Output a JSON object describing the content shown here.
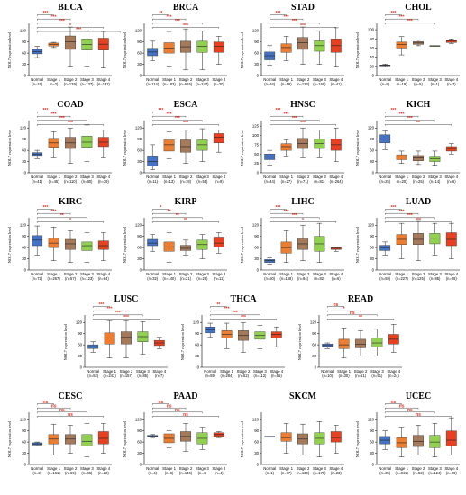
{
  "colors": {
    "Normal": "#4472c4",
    "Stage 1": "#ed7d31",
    "Stage 2": "#a5795a",
    "Stage 3": "#92d050",
    "Stage 4": "#e84020",
    "significance": "#e03020"
  },
  "chart_data": [
    {
      "type": "box",
      "title": "BLCA",
      "ylabel": "NOL7 expression level",
      "yticks": [
        0,
        30,
        60,
        90,
        120
      ],
      "ylim": [
        0,
        135
      ],
      "categories": [
        "Normal",
        "Stage 1",
        "Stage 2",
        "Stage 3",
        "Stage 4"
      ],
      "n_labels": [
        "(n=19)",
        "(n=2)",
        "(n=129)",
        "(n=137)",
        "(n=132)"
      ],
      "boxes": [
        [
          48,
          58,
          64,
          70,
          78
        ],
        [
          75,
          79,
          83,
          87,
          89
        ],
        [
          25,
          70,
          90,
          106,
          130
        ],
        [
          25,
          68,
          83,
          98,
          120
        ],
        [
          20,
          68,
          84,
          100,
          118
        ]
      ],
      "significance": [
        "***",
        "***",
        "***",
        "*",
        "***"
      ]
    },
    {
      "type": "box",
      "title": "BRCA",
      "ylabel": "NOL7 expression level",
      "yticks": [
        0,
        30,
        60,
        90,
        120
      ],
      "ylim": [
        0,
        135
      ],
      "categories": [
        "Normal",
        "Stage 1",
        "Stage 2",
        "Stage 3",
        "Stage 4"
      ],
      "n_labels": [
        "(n=114)",
        "(n=183)",
        "(n=615)",
        "(n=247)",
        "(n=20)"
      ],
      "boxes": [
        [
          40,
          53,
          63,
          73,
          92
        ],
        [
          25,
          60,
          73,
          88,
          118
        ],
        [
          15,
          62,
          77,
          92,
          125
        ],
        [
          15,
          62,
          78,
          92,
          120
        ],
        [
          30,
          62,
          78,
          90,
          105
        ]
      ],
      "significance": [
        "**",
        "***",
        "***",
        "***"
      ]
    },
    {
      "type": "box",
      "title": "STAD",
      "ylabel": "NOL7 expression level",
      "yticks": [
        0,
        30,
        60,
        90,
        120
      ],
      "ylim": [
        0,
        135
      ],
      "categories": [
        "Normal",
        "Stage 1",
        "Stage 2",
        "Stage 3",
        "Stage 4"
      ],
      "n_labels": [
        "(n=34)",
        "(n=18)",
        "(n=123)",
        "(n=169)",
        "(n=41)"
      ],
      "boxes": [
        [
          28,
          42,
          53,
          63,
          80
        ],
        [
          40,
          62,
          75,
          85,
          105
        ],
        [
          30,
          70,
          88,
          102,
          130
        ],
        [
          30,
          65,
          80,
          93,
          120
        ],
        [
          25,
          62,
          80,
          98,
          128
        ]
      ],
      "significance": [
        "***",
        "***",
        "***",
        "***"
      ]
    },
    {
      "type": "box",
      "title": "CHOL",
      "ylabel": "NOL7 expression level",
      "yticks": [
        0,
        20,
        40,
        60,
        80,
        100
      ],
      "ylim": [
        0,
        110
      ],
      "categories": [
        "Normal",
        "Stage 1",
        "Stage 2",
        "Stage 3",
        "Stage 4"
      ],
      "n_labels": [
        "(n=9)",
        "(n=19)",
        "(n=5)",
        "(n=1)",
        "(n=7)"
      ],
      "boxes": [
        [
          19,
          21,
          22,
          23,
          25
        ],
        [
          45,
          60,
          68,
          73,
          85
        ],
        [
          65,
          68,
          71,
          74,
          77
        ],
        [
          65,
          65,
          65,
          65,
          65
        ],
        [
          70,
          72,
          75,
          78,
          80
        ]
      ],
      "significance": [
        "***",
        "***",
        "***"
      ]
    },
    {
      "type": "box",
      "title": "COAD",
      "ylabel": "NOL7 expression level",
      "yticks": [
        0,
        30,
        60,
        90,
        120
      ],
      "ylim": [
        0,
        135
      ],
      "categories": [
        "Normal",
        "Stage 1",
        "Stage 2",
        "Stage 3",
        "Stage 4"
      ],
      "n_labels": [
        "(n=41)",
        "(n=45)",
        "(n=110)",
        "(n=80)",
        "(n=39)"
      ],
      "boxes": [
        [
          38,
          46,
          50,
          54,
          60
        ],
        [
          40,
          68,
          80,
          92,
          110
        ],
        [
          25,
          65,
          80,
          95,
          120
        ],
        [
          30,
          68,
          82,
          98,
          128
        ],
        [
          40,
          70,
          82,
          95,
          115
        ]
      ],
      "significance": [
        "***",
        "***",
        "***",
        "***"
      ]
    },
    {
      "type": "box",
      "title": "ESCA",
      "ylabel": "NOL7 expression level",
      "yticks": [
        0,
        30,
        60,
        90,
        120
      ],
      "ylim": [
        0,
        135
      ],
      "categories": [
        "Normal",
        "Stage 1",
        "Stage 2",
        "Stage 3",
        "Stage 4"
      ],
      "n_labels": [
        "(n=11)",
        "(n=13)",
        "(n=78)",
        "(n=55)",
        "(n=9)"
      ],
      "boxes": [
        [
          8,
          18,
          30,
          45,
          75
        ],
        [
          38,
          58,
          75,
          88,
          110
        ],
        [
          25,
          55,
          70,
          88,
          115
        ],
        [
          30,
          60,
          75,
          88,
          118
        ],
        [
          55,
          80,
          95,
          105,
          115
        ]
      ],
      "significance": [
        "***",
        "***",
        "***",
        "***"
      ]
    },
    {
      "type": "box",
      "title": "HNSC",
      "ylabel": "NOL7 expression level",
      "yticks": [
        0,
        25,
        50,
        75,
        100,
        125
      ],
      "ylim": [
        0,
        135
      ],
      "categories": [
        "Normal",
        "Stage 1",
        "Stage 2",
        "Stage 3",
        "Stage 4"
      ],
      "n_labels": [
        "(n=44)",
        "(n=27)",
        "(n=71)",
        "(n=81)",
        "(n=264)"
      ],
      "boxes": [
        [
          20,
          35,
          42,
          50,
          60
        ],
        [
          45,
          60,
          70,
          78,
          88
        ],
        [
          40,
          65,
          78,
          92,
          120
        ],
        [
          40,
          65,
          78,
          90,
          115
        ],
        [
          30,
          60,
          75,
          90,
          120
        ]
      ],
      "significance": [
        "***",
        "***",
        "***",
        "***"
      ]
    },
    {
      "type": "box",
      "title": "KICH",
      "ylabel": "NOL7 expression level",
      "yticks": [
        0,
        30,
        60,
        90,
        120
      ],
      "ylim": [
        0,
        135
      ],
      "categories": [
        "Normal",
        "Stage 1",
        "Stage 2",
        "Stage 3",
        "Stage 4"
      ],
      "n_labels": [
        "(n=25)",
        "(n=20)",
        "(n=25)",
        "(n=14)",
        "(n=6)"
      ],
      "boxes": [
        [
          62,
          80,
          90,
          102,
          112
        ],
        [
          25,
          35,
          42,
          48,
          58
        ],
        [
          22,
          32,
          40,
          46,
          58
        ],
        [
          20,
          30,
          38,
          44,
          58
        ],
        [
          50,
          58,
          65,
          70,
          78
        ]
      ],
      "significance": [
        "***",
        "***",
        "***",
        "**"
      ]
    },
    {
      "type": "box",
      "title": "KIRC",
      "ylabel": "NOL7 expression level",
      "yticks": [
        0,
        30,
        60,
        90,
        120
      ],
      "ylim": [
        0,
        135
      ],
      "categories": [
        "Normal",
        "Stage 1",
        "Stage 2",
        "Stage 3",
        "Stage 4"
      ],
      "n_labels": [
        "(n=72)",
        "(n=267)",
        "(n=57)",
        "(n=123)",
        "(n=84)"
      ],
      "boxes": [
        [
          40,
          65,
          80,
          92,
          118
        ],
        [
          25,
          60,
          72,
          85,
          115
        ],
        [
          20,
          55,
          70,
          82,
          105
        ],
        [
          20,
          52,
          65,
          75,
          100
        ],
        [
          25,
          55,
          65,
          78,
          100
        ]
      ],
      "significance": [
        "***",
        "***",
        "**",
        "*"
      ]
    },
    {
      "type": "box",
      "title": "KIRP",
      "ylabel": "NOL7 expression level",
      "yticks": [
        0,
        30,
        60,
        90,
        120
      ],
      "ylim": [
        0,
        135
      ],
      "categories": [
        "Normal",
        "Stage 1",
        "Stage 2",
        "Stage 3",
        "Stage 4"
      ],
      "n_labels": [
        "(n=32)",
        "(n=140)",
        "(n=21)",
        "(n=29)",
        "(n=11)"
      ],
      "boxes": [
        [
          50,
          65,
          72,
          82,
          95
        ],
        [
          20,
          50,
          62,
          75,
          100
        ],
        [
          40,
          52,
          58,
          66,
          80
        ],
        [
          30,
          55,
          68,
          80,
          95
        ],
        [
          45,
          62,
          72,
          88,
          100
        ]
      ],
      "significance": [
        "*",
        "**",
        "**",
        "**"
      ]
    },
    {
      "type": "box",
      "title": "LIHC",
      "ylabel": "NOL7 expression level",
      "yticks": [
        0,
        30,
        60,
        90,
        120
      ],
      "ylim": [
        0,
        135
      ],
      "categories": [
        "Normal",
        "Stage 1",
        "Stage 2",
        "Stage 3",
        "Stage 4"
      ],
      "n_labels": [
        "(n=50)",
        "(n=168)",
        "(n=84)",
        "(n=82)",
        "(n=6)"
      ],
      "boxes": [
        [
          15,
          20,
          25,
          28,
          32
        ],
        [
          20,
          45,
          60,
          75,
          105
        ],
        [
          25,
          55,
          70,
          85,
          120
        ],
        [
          20,
          50,
          70,
          90,
          125
        ],
        [
          50,
          55,
          58,
          60,
          62
        ]
      ],
      "significance": [
        "***",
        "***",
        "***",
        "*"
      ]
    },
    {
      "type": "box",
      "title": "LUAD",
      "ylabel": "NOL7 expression level",
      "yticks": [
        0,
        30,
        60,
        90,
        120
      ],
      "ylim": [
        0,
        135
      ],
      "categories": [
        "Normal",
        "Stage 1",
        "Stage 2",
        "Stage 3",
        "Stage 4"
      ],
      "n_labels": [
        "(n=59)",
        "(n=227)",
        "(n=125)",
        "(n=85)",
        "(n=28)"
      ],
      "boxes": [
        [
          40,
          52,
          60,
          66,
          75
        ],
        [
          30,
          68,
          82,
          95,
          125
        ],
        [
          25,
          68,
          82,
          98,
          130
        ],
        [
          40,
          70,
          85,
          98,
          125
        ],
        [
          30,
          65,
          82,
          100,
          125
        ]
      ],
      "significance": [
        "***",
        "***",
        "***",
        "***"
      ]
    },
    {
      "type": "box",
      "title": "LUSC",
      "ylabel": "NOL7 expression level",
      "yticks": [
        0,
        30,
        60,
        90,
        120
      ],
      "ylim": [
        0,
        135
      ],
      "categories": [
        "Normal",
        "Stage 1",
        "Stage 2",
        "Stage 3",
        "Stage 4"
      ],
      "n_labels": [
        "(n=52)",
        "(n=243)",
        "(n=157)",
        "(n=85)",
        "(n=7)"
      ],
      "boxes": [
        [
          40,
          50,
          55,
          60,
          68
        ],
        [
          25,
          62,
          78,
          92,
          125
        ],
        [
          25,
          62,
          80,
          95,
          125
        ],
        [
          35,
          68,
          82,
          95,
          122
        ],
        [
          50,
          58,
          65,
          72,
          80
        ]
      ],
      "significance": [
        "***",
        "***",
        "***",
        "***"
      ]
    },
    {
      "type": "box",
      "title": "THCA",
      "ylabel": "NOL7 expression level",
      "yticks": [
        0,
        30,
        60,
        90,
        120
      ],
      "ylim": [
        0,
        135
      ],
      "categories": [
        "Normal",
        "Stage 1",
        "Stage 2",
        "Stage 3",
        "Stage 4"
      ],
      "n_labels": [
        "(n=59)",
        "(n=284)",
        "(n=52)",
        "(n=112)",
        "(n=55)"
      ],
      "boxes": [
        [
          80,
          92,
          100,
          108,
          118
        ],
        [
          50,
          78,
          88,
          98,
          118
        ],
        [
          40,
          72,
          85,
          98,
          120
        ],
        [
          50,
          75,
          85,
          95,
          112
        ],
        [
          55,
          78,
          88,
          95,
          108
        ]
      ],
      "significance": [
        "**",
        "***",
        "***",
        "***"
      ]
    },
    {
      "type": "box",
      "title": "READ",
      "ylabel": "NOL7 expression level",
      "yticks": [
        0,
        30,
        60,
        90,
        120
      ],
      "ylim": [
        0,
        135
      ],
      "categories": [
        "Normal",
        "Stage 1",
        "Stage 2",
        "Stage 3",
        "Stage 4"
      ],
      "n_labels": [
        "(n=10)",
        "(n=30)",
        "(n=51)",
        "(n=51)",
        "(n=24)"
      ],
      "boxes": [
        [
          50,
          55,
          58,
          62,
          65
        ],
        [
          25,
          50,
          60,
          75,
          105
        ],
        [
          30,
          52,
          62,
          75,
          98
        ],
        [
          30,
          55,
          65,
          78,
          102
        ],
        [
          40,
          62,
          75,
          88,
          115
        ]
      ],
      "significance": [
        "ns",
        "*",
        "ns",
        "**"
      ]
    },
    {
      "type": "box",
      "title": "CESC",
      "ylabel": "NOL7 expression level",
      "yticks": [
        0,
        30,
        60,
        90,
        120
      ],
      "ylim": [
        0,
        135
      ],
      "categories": [
        "Normal",
        "Stage 1",
        "Stage 2",
        "Stage 3",
        "Stage 4"
      ],
      "n_labels": [
        "(n=3)",
        "(n=161)",
        "(n=69)",
        "(n=46)",
        "(n=22)"
      ],
      "boxes": [
        [
          50,
          52,
          55,
          58,
          60
        ],
        [
          25,
          55,
          68,
          80,
          108
        ],
        [
          30,
          55,
          68,
          80,
          105
        ],
        [
          20,
          50,
          62,
          80,
          110
        ],
        [
          30,
          55,
          70,
          88,
          110
        ]
      ],
      "significance": [
        "ns",
        "ns",
        "ns",
        "ns"
      ]
    },
    {
      "type": "box",
      "title": "PAAD",
      "ylabel": "NOL7 expression level",
      "yticks": [
        0,
        30,
        60,
        90,
        120
      ],
      "ylim": [
        0,
        135
      ],
      "categories": [
        "Normal",
        "Stage 1",
        "Stage 2",
        "Stage 3",
        "Stage 4"
      ],
      "n_labels": [
        "(n=4)",
        "(n=6)",
        "(n=146)",
        "(n=4)",
        "(n=4)"
      ],
      "boxes": [
        [
          72,
          74,
          76,
          78,
          80
        ],
        [
          45,
          58,
          70,
          82,
          90
        ],
        [
          35,
          62,
          75,
          88,
          110
        ],
        [
          40,
          55,
          70,
          85,
          100
        ],
        [
          72,
          75,
          80,
          85,
          88
        ]
      ],
      "significance": [
        "ns",
        "ns",
        "ns",
        "ns"
      ]
    },
    {
      "type": "box",
      "title": "SKCM",
      "ylabel": "NOL7 expression level",
      "yticks": [
        0,
        30,
        60,
        90,
        120
      ],
      "ylim": [
        0,
        135
      ],
      "categories": [
        "Normal",
        "Stage 1",
        "Stage 2",
        "Stage 3",
        "Stage 4"
      ],
      "n_labels": [
        "(n=1)",
        "(n=77)",
        "(n=139)",
        "(n=170)",
        "(n=23)"
      ],
      "boxes": [
        [
          75,
          75,
          75,
          75,
          75
        ],
        [
          30,
          62,
          72,
          85,
          110
        ],
        [
          25,
          55,
          68,
          82,
          108
        ],
        [
          20,
          55,
          70,
          85,
          115
        ],
        [
          30,
          60,
          72,
          88,
          105
        ]
      ],
      "significance": []
    },
    {
      "type": "box",
      "title": "UCEC",
      "ylabel": "NOL7 expression level",
      "yticks": [
        0,
        30,
        60,
        90,
        120
      ],
      "ylim": [
        0,
        135
      ],
      "categories": [
        "Normal",
        "Stage 1",
        "Stage 2",
        "Stage 3",
        "Stage 4"
      ],
      "n_labels": [
        "(n=35)",
        "(n=341)",
        "(n=52)",
        "(n=124)",
        "(n=29)"
      ],
      "boxes": [
        [
          40,
          55,
          65,
          75,
          90
        ],
        [
          20,
          45,
          58,
          72,
          100
        ],
        [
          25,
          48,
          62,
          78,
          105
        ],
        [
          20,
          45,
          60,
          78,
          110
        ],
        [
          25,
          50,
          65,
          90,
          125
        ]
      ],
      "significance": [
        "ns",
        "ns",
        "ns",
        "ns"
      ]
    }
  ]
}
